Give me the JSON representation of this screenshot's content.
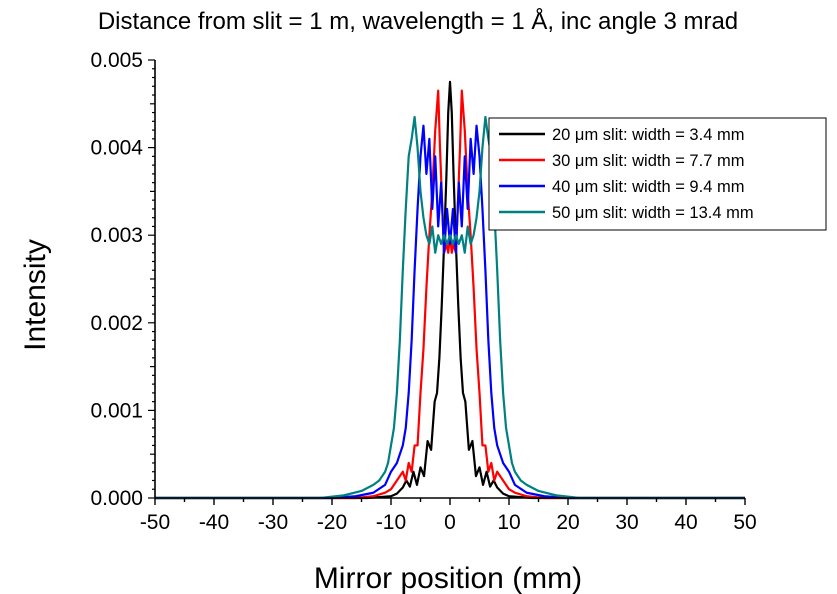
{
  "chart_data": {
    "type": "line",
    "title": "Distance from slit = 1 m, wavelength = 1 Å, inc angle 3 mrad",
    "xlabel": "Mirror position (mm)",
    "ylabel": "Intensity",
    "xlim": [
      -50,
      50
    ],
    "ylim": [
      0,
      0.005
    ],
    "xticks": [
      -50,
      -40,
      -30,
      -20,
      -10,
      0,
      10,
      20,
      30,
      40,
      50
    ],
    "xtick_labels": [
      "-50",
      "-40",
      "-30",
      "-20",
      "-10",
      "0",
      "10",
      "20",
      "30",
      "40",
      "50"
    ],
    "yticks": [
      0,
      0.001,
      0.002,
      0.003,
      0.004,
      0.005
    ],
    "ytick_labels": [
      "0.000",
      "0.001",
      "0.002",
      "0.003",
      "0.004",
      "0.005"
    ],
    "grid": false,
    "legend_position": "top-right",
    "series": [
      {
        "name": "20 μm slit: width = 3.4 mm",
        "color": "#000000",
        "x": [
          -14,
          -12,
          -10,
          -9,
          -8,
          -7.4,
          -6.8,
          -6.2,
          -5.6,
          -5,
          -4.4,
          -3.8,
          -3.2,
          -2.6,
          -2.2,
          -1.8,
          -1.4,
          -1,
          -0.6,
          -0.3,
          0,
          0.3,
          0.6,
          1,
          1.4,
          1.8,
          2.2,
          2.6,
          3.2,
          3.8,
          4.4,
          5,
          5.6,
          6.2,
          6.8,
          7.4,
          8,
          9,
          10,
          12,
          14
        ],
        "y": [
          0,
          1e-05,
          2e-05,
          5e-05,
          0.00012,
          0.0002,
          0.00013,
          0.0003,
          0.00015,
          0.00035,
          0.00025,
          0.00065,
          0.00055,
          0.0011,
          0.0012,
          0.0016,
          0.0022,
          0.0029,
          0.0037,
          0.0044,
          0.00475,
          0.0044,
          0.0037,
          0.0029,
          0.0022,
          0.0016,
          0.0012,
          0.0011,
          0.00055,
          0.00065,
          0.00025,
          0.00035,
          0.00015,
          0.0003,
          0.00013,
          0.0002,
          0.00012,
          5e-05,
          2e-05,
          1e-05,
          0
        ]
      },
      {
        "name": "30 μm slit: width = 7.7 mm",
        "color": "#ff0000",
        "x": [
          -16,
          -13,
          -11,
          -10,
          -9,
          -8,
          -7.5,
          -7,
          -6.5,
          -6,
          -5.5,
          -5,
          -4.5,
          -4,
          -3.5,
          -3,
          -2.5,
          -2,
          -1.7,
          -1.3,
          -1,
          -0.6,
          -0.3,
          0,
          0.3,
          0.6,
          1,
          1.3,
          1.7,
          2,
          2.5,
          3,
          3.5,
          4,
          4.5,
          5,
          5.5,
          6,
          6.5,
          7,
          7.5,
          8,
          9,
          10,
          11,
          13,
          16
        ],
        "y": [
          0,
          2e-05,
          6e-05,
          0.0001,
          0.0002,
          0.0003,
          0.0002,
          0.0004,
          0.0003,
          0.0006,
          0.0006,
          0.0012,
          0.0017,
          0.0024,
          0.003,
          0.0035,
          0.0042,
          0.00465,
          0.004,
          0.0033,
          0.0028,
          0.0029,
          0.0028,
          0.003,
          0.0028,
          0.0029,
          0.0028,
          0.0033,
          0.004,
          0.00465,
          0.0042,
          0.0035,
          0.003,
          0.0024,
          0.0017,
          0.0012,
          0.0006,
          0.0006,
          0.0003,
          0.0004,
          0.0002,
          0.0003,
          0.0002,
          0.0001,
          6e-05,
          2e-05,
          0
        ]
      },
      {
        "name": "40 μm slit: width = 9.4 mm",
        "color": "#0000ff",
        "x": [
          -20,
          -16,
          -13,
          -11,
          -10,
          -9,
          -8,
          -7.5,
          -7,
          -6.5,
          -6,
          -5.5,
          -5,
          -4.5,
          -4,
          -3.5,
          -3,
          -2.5,
          -2,
          -1.5,
          -1,
          -0.5,
          0,
          0.5,
          1,
          1.5,
          2,
          2.5,
          3,
          3.5,
          4,
          4.5,
          5,
          5.5,
          6,
          6.5,
          7,
          7.5,
          8,
          9,
          10,
          11,
          13,
          16,
          20
        ],
        "y": [
          0,
          2e-05,
          6e-05,
          0.00015,
          0.0003,
          0.0004,
          0.0006,
          0.0008,
          0.0012,
          0.0018,
          0.0026,
          0.0033,
          0.0039,
          0.00425,
          0.0037,
          0.0041,
          0.0033,
          0.0039,
          0.0031,
          0.0036,
          0.0028,
          0.0033,
          0.0029,
          0.0033,
          0.0028,
          0.0036,
          0.0031,
          0.0039,
          0.0033,
          0.0041,
          0.0037,
          0.00425,
          0.0039,
          0.0033,
          0.0026,
          0.0018,
          0.0012,
          0.0008,
          0.0006,
          0.0004,
          0.0003,
          0.00015,
          6e-05,
          2e-05,
          0
        ]
      },
      {
        "name": "50 μm slit: width = 13.4 mm",
        "color": "#008080",
        "x": [
          -22,
          -18,
          -15,
          -13,
          -12,
          -11,
          -10.5,
          -10,
          -9.5,
          -9,
          -8.5,
          -8,
          -7.5,
          -7,
          -6.5,
          -6,
          -5.5,
          -5,
          -4.5,
          -4,
          -3.5,
          -3,
          -2.5,
          -2,
          -1.5,
          -1,
          -0.5,
          0,
          0.5,
          1,
          1.5,
          2,
          2.5,
          3,
          3.5,
          4,
          4.5,
          5,
          5.5,
          6,
          6.5,
          7,
          7.5,
          8,
          8.5,
          9,
          9.5,
          10,
          10.5,
          11,
          12,
          13,
          15,
          18,
          22
        ],
        "y": [
          0,
          3e-05,
          8e-05,
          0.00015,
          0.0002,
          0.0003,
          0.0004,
          0.0006,
          0.0008,
          0.0012,
          0.0018,
          0.0026,
          0.0033,
          0.0039,
          0.0041,
          0.00435,
          0.004,
          0.0035,
          0.0032,
          0.003,
          0.0029,
          0.0031,
          0.0028,
          0.003,
          0.0029,
          0.003,
          0.0029,
          0.003,
          0.0029,
          0.003,
          0.0029,
          0.003,
          0.0028,
          0.0031,
          0.0029,
          0.003,
          0.0032,
          0.0035,
          0.004,
          0.00435,
          0.0041,
          0.0039,
          0.0033,
          0.0026,
          0.0018,
          0.0012,
          0.0008,
          0.0006,
          0.0004,
          0.0003,
          0.0002,
          0.00015,
          8e-05,
          3e-05,
          0
        ]
      }
    ]
  }
}
